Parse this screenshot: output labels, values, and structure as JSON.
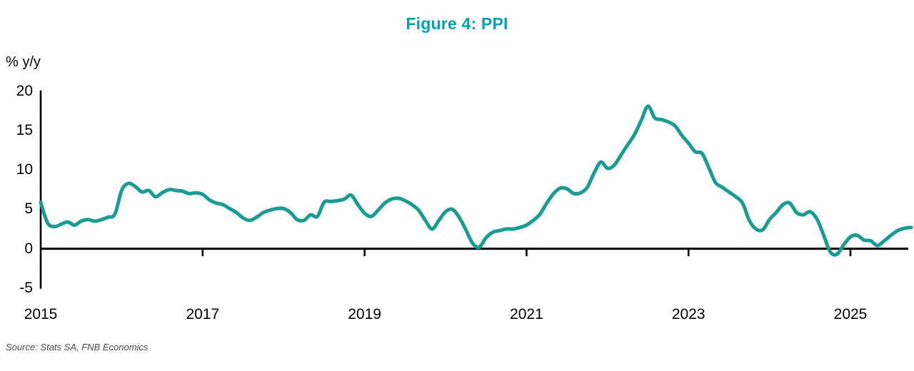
{
  "header": {
    "title": "Figure 4: PPI"
  },
  "chart_data": {
    "type": "line",
    "title": "Figure 4: PPI",
    "ylabel": "% y/y",
    "source": "Source: Stats SA, FNB Economics",
    "frequency": "monthly",
    "x_start_year": 2015,
    "x_start_month": 1,
    "x_tick_years": [
      2015,
      2017,
      2019,
      2021,
      2023,
      2025
    ],
    "x_tick_labels": [
      "2015",
      "2017",
      "2019",
      "2021",
      "2023",
      "2025"
    ],
    "y_ticks": [
      20,
      15,
      10,
      5,
      0,
      -5
    ],
    "ylim": [
      -5,
      20
    ],
    "grid": false,
    "legend": "none",
    "colors": {
      "line": "#1A9C94",
      "title": "#00A2B2",
      "axis": "#000000",
      "source_text": "#4B4B4B"
    },
    "series": [
      {
        "name": "PPI % y/y",
        "values": [
          5.9,
          3.3,
          2.8,
          3.1,
          3.4,
          3.0,
          3.5,
          3.7,
          3.5,
          3.7,
          4.0,
          4.4,
          7.4,
          8.3,
          7.9,
          7.2,
          7.4,
          6.6,
          7.1,
          7.5,
          7.4,
          7.3,
          7.0,
          7.1,
          6.9,
          6.2,
          5.8,
          5.6,
          5.1,
          4.6,
          3.9,
          3.6,
          4.0,
          4.6,
          4.9,
          5.1,
          5.1,
          4.6,
          3.7,
          3.6,
          4.3,
          4.1,
          5.9,
          6.0,
          6.1,
          6.3,
          6.8,
          5.6,
          4.5,
          4.1,
          4.9,
          5.8,
          6.3,
          6.4,
          6.1,
          5.6,
          4.9,
          3.6,
          2.5,
          3.6,
          4.7,
          5.0,
          4.0,
          2.4,
          0.7,
          0.2,
          1.4,
          2.1,
          2.3,
          2.5,
          2.5,
          2.7,
          3.0,
          3.6,
          4.4,
          5.8,
          7.0,
          7.7,
          7.6,
          7.0,
          7.1,
          7.8,
          9.6,
          11.0,
          10.2,
          10.6,
          11.9,
          13.2,
          14.5,
          16.3,
          18.1,
          16.6,
          16.4,
          16.1,
          15.6,
          14.4,
          13.4,
          12.3,
          12.1,
          10.3,
          8.4,
          7.8,
          7.2,
          6.6,
          5.8,
          3.6,
          2.5,
          2.4,
          3.7,
          4.6,
          5.6,
          5.8,
          4.6,
          4.3,
          4.7,
          3.8,
          1.8,
          -0.4,
          -0.7,
          0.5,
          1.5,
          1.7,
          1.1,
          1.0,
          0.4,
          1.0,
          1.7,
          2.3,
          2.6,
          2.7
        ]
      }
    ]
  }
}
